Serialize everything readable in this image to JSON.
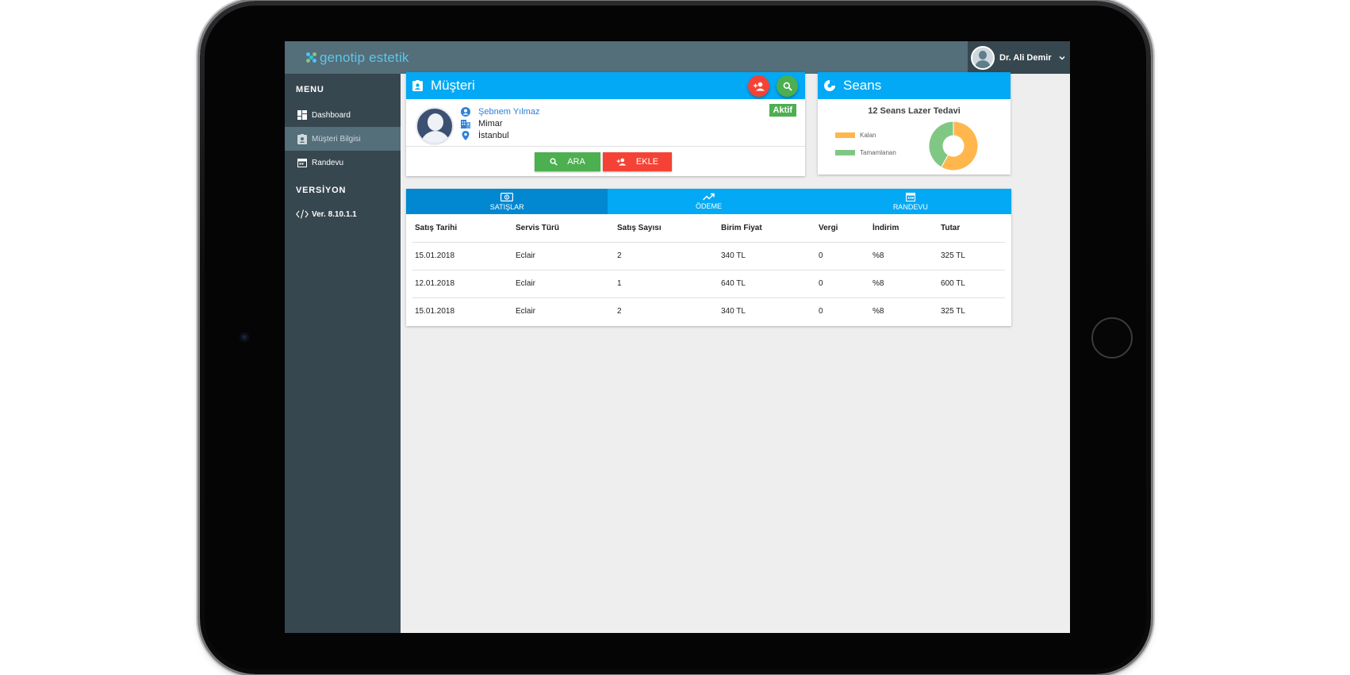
{
  "app": {
    "logo_text": "genotip estetik",
    "user_name": "Dr. Ali Demir"
  },
  "sidebar": {
    "menu_heading": "MENU",
    "items": [
      {
        "label": "Dashboard",
        "icon": "dashboard-icon"
      },
      {
        "label": "Müşteri Bilgisi",
        "icon": "contact-card-icon"
      },
      {
        "label": "Randevu",
        "icon": "calendar-icon"
      }
    ],
    "active_index": 1,
    "version_heading": "VERSİYON",
    "version": "Ver. 8.10.1.1"
  },
  "customer_card": {
    "title": "Müşteri",
    "name": "Şebnem Yılmaz",
    "occupation": "Mimar",
    "city": "İstanbul",
    "status": "Aktif",
    "search_button": "ARA",
    "add_button": "EKLE"
  },
  "sessions_card": {
    "title": "Seans",
    "chart_data": {
      "type": "pie",
      "title": "12 Seans Lazer Tedavi",
      "categories": [
        "Kalan",
        "Tamamlanan"
      ],
      "values": [
        7,
        5
      ],
      "colors": [
        "#ffb74d",
        "#81c784"
      ],
      "legend": "left"
    }
  },
  "tabs": [
    {
      "label": "SATIŞLAR",
      "icon": "money-icon"
    },
    {
      "label": "ÖDEME",
      "icon": "trending-up-icon"
    },
    {
      "label": "RANDEVU",
      "icon": "calendar-icon"
    }
  ],
  "active_tab": 0,
  "sales_table": {
    "headers": [
      "Satış Tarihi",
      "Servis Türü",
      "Satış Sayısı",
      "Birim Fiyat",
      "Vergi",
      "İndirim",
      "Tutar"
    ],
    "rows": [
      [
        "15.01.2018",
        "Eclair",
        "2",
        "340 TL",
        "0",
        "%8",
        "325 TL"
      ],
      [
        "12.01.2018",
        "Eclair",
        "1",
        "640 TL",
        "0",
        "%8",
        "600 TL"
      ],
      [
        "15.01.2018",
        "Eclair",
        "2",
        "340 TL",
        "0",
        "%8",
        "325 TL"
      ]
    ]
  },
  "colors": {
    "topbar": "#546e7a",
    "sidebar": "#37474f",
    "primary": "#03a9f4",
    "success": "#4caf50",
    "danger": "#f44336"
  }
}
